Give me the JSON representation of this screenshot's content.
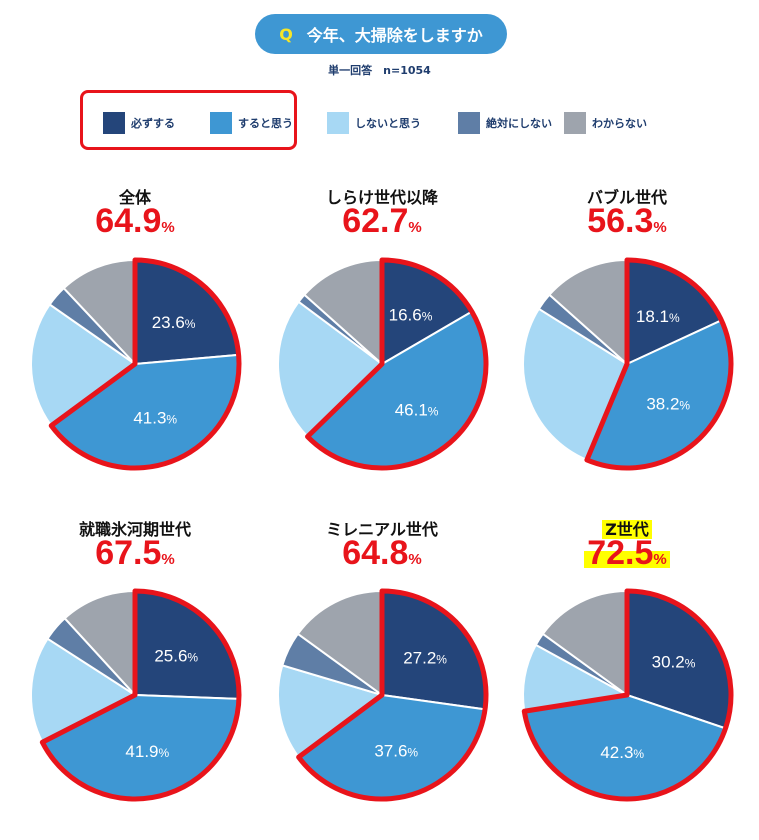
{
  "header": {
    "q_badge": "Q",
    "question": "今年、大掃除をしますか",
    "subtitle": "単一回答　n=1054"
  },
  "legend": [
    {
      "label": "必ずする",
      "color": "#24457a"
    },
    {
      "label": "すると思う",
      "color": "#3e97d3"
    },
    {
      "label": "しないと思う",
      "color": "#a7d8f4"
    },
    {
      "label": "絶対にしない",
      "color": "#5f7ea6"
    },
    {
      "label": "わからない",
      "color": "#9ea4ad"
    }
  ],
  "highlight_color": "#e8141b",
  "percent_sign": "%",
  "chart_data": [
    {
      "type": "pie",
      "title": "全体",
      "total": "64.9",
      "slices": [
        23.6,
        41.3,
        19.8,
        3.3,
        12.0
      ],
      "labels": [
        "23.6",
        "41.3",
        "",
        "",
        ""
      ],
      "title_highlight": false
    },
    {
      "type": "pie",
      "title": "しらけ世代以降",
      "total": "62.7",
      "slices": [
        16.6,
        46.1,
        22.5,
        1.4,
        13.4
      ],
      "labels": [
        "16.6",
        "46.1",
        "",
        "",
        ""
      ],
      "title_highlight": false
    },
    {
      "type": "pie",
      "title": "バブル世代",
      "total": "56.3",
      "slices": [
        18.1,
        38.2,
        27.6,
        2.7,
        13.4
      ],
      "labels": [
        "18.1",
        "38.2",
        "",
        "",
        ""
      ],
      "title_highlight": false
    },
    {
      "type": "pie",
      "title": "就職氷河期世代",
      "total": "67.5",
      "slices": [
        25.6,
        41.9,
        16.6,
        4.1,
        11.8
      ],
      "labels": [
        "25.6",
        "41.9",
        "",
        "",
        ""
      ],
      "title_highlight": false
    },
    {
      "type": "pie",
      "title": "ミレニアル世代",
      "total": "64.8",
      "slices": [
        27.2,
        37.6,
        14.8,
        5.4,
        15.0
      ],
      "labels": [
        "27.2",
        "37.6",
        "",
        "",
        ""
      ],
      "title_highlight": false
    },
    {
      "type": "pie",
      "title": "Z世代",
      "total": "72.5",
      "slices": [
        30.2,
        42.3,
        10.5,
        2.0,
        15.0
      ],
      "labels": [
        "30.2",
        "42.3",
        "",
        "",
        ""
      ],
      "title_highlight": true
    }
  ]
}
